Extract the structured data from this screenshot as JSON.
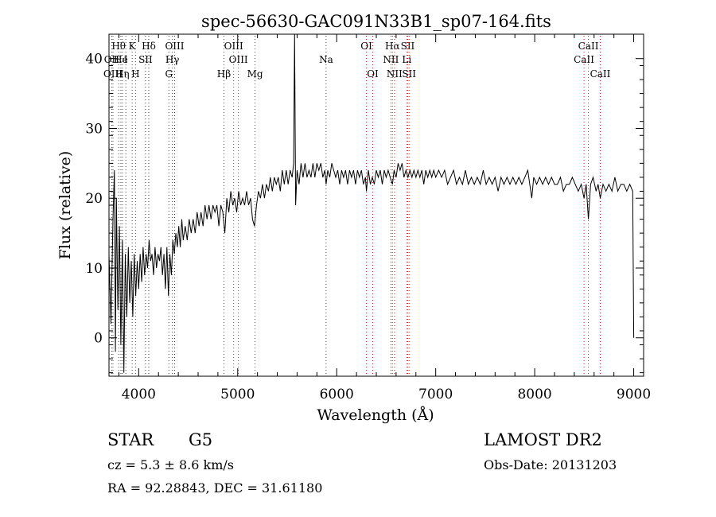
{
  "chart_data": {
    "type": "line",
    "title": "spec-56630-GAC091N33B1_sp07-164.fits",
    "xlabel": "Wavelength (Å)",
    "ylabel": "Flux (relative)",
    "xlim": [
      3700,
      9100
    ],
    "ylim": [
      -5.5,
      43.5
    ],
    "x_ticks": [
      4000,
      5000,
      6000,
      7000,
      8000,
      9000
    ],
    "y_ticks": [
      0,
      10,
      20,
      30,
      40
    ],
    "grid": false,
    "series": [
      {
        "points": [
          [
            3700,
            12
          ],
          [
            3720,
            2
          ],
          [
            3740,
            17
          ],
          [
            3755,
            24
          ],
          [
            3765,
            -2
          ],
          [
            3775,
            20
          ],
          [
            3790,
            4
          ],
          [
            3805,
            16
          ],
          [
            3820,
            -1
          ],
          [
            3835,
            14
          ],
          [
            3850,
            -5
          ],
          [
            3865,
            12
          ],
          [
            3880,
            3
          ],
          [
            3895,
            13
          ],
          [
            3910,
            5
          ],
          [
            3925,
            11
          ],
          [
            3940,
            3
          ],
          [
            3955,
            12
          ],
          [
            3970,
            6
          ],
          [
            3985,
            11
          ],
          [
            4000,
            7
          ],
          [
            4015,
            12
          ],
          [
            4030,
            8
          ],
          [
            4045,
            13
          ],
          [
            4060,
            9
          ],
          [
            4075,
            12
          ],
          [
            4090,
            10
          ],
          [
            4105,
            14
          ],
          [
            4120,
            11
          ],
          [
            4135,
            12
          ],
          [
            4150,
            9
          ],
          [
            4165,
            13
          ],
          [
            4180,
            10
          ],
          [
            4195,
            12
          ],
          [
            4210,
            11
          ],
          [
            4225,
            13
          ],
          [
            4240,
            9
          ],
          [
            4255,
            12
          ],
          [
            4270,
            7
          ],
          [
            4285,
            13
          ],
          [
            4300,
            6
          ],
          [
            4315,
            12
          ],
          [
            4330,
            9
          ],
          [
            4345,
            14
          ],
          [
            4360,
            12
          ],
          [
            4375,
            15
          ],
          [
            4390,
            13
          ],
          [
            4405,
            16
          ],
          [
            4420,
            13
          ],
          [
            4435,
            17
          ],
          [
            4450,
            14
          ],
          [
            4470,
            16
          ],
          [
            4490,
            14
          ],
          [
            4510,
            17
          ],
          [
            4530,
            15
          ],
          [
            4550,
            17
          ],
          [
            4570,
            15
          ],
          [
            4590,
            18
          ],
          [
            4610,
            16
          ],
          [
            4630,
            18
          ],
          [
            4650,
            16
          ],
          [
            4670,
            19
          ],
          [
            4690,
            17
          ],
          [
            4710,
            19
          ],
          [
            4730,
            17
          ],
          [
            4750,
            19
          ],
          [
            4770,
            18
          ],
          [
            4790,
            19
          ],
          [
            4810,
            16
          ],
          [
            4830,
            19
          ],
          [
            4850,
            18
          ],
          [
            4870,
            15
          ],
          [
            4890,
            20
          ],
          [
            4910,
            18
          ],
          [
            4930,
            21
          ],
          [
            4950,
            19
          ],
          [
            4970,
            20
          ],
          [
            4990,
            18
          ],
          [
            5010,
            21
          ],
          [
            5030,
            19
          ],
          [
            5050,
            20
          ],
          [
            5070,
            19
          ],
          [
            5090,
            21
          ],
          [
            5110,
            19
          ],
          [
            5130,
            20
          ],
          [
            5150,
            17
          ],
          [
            5170,
            16
          ],
          [
            5190,
            19
          ],
          [
            5210,
            21
          ],
          [
            5230,
            20
          ],
          [
            5250,
            22
          ],
          [
            5270,
            20
          ],
          [
            5290,
            22
          ],
          [
            5310,
            21
          ],
          [
            5330,
            23
          ],
          [
            5350,
            21
          ],
          [
            5370,
            23
          ],
          [
            5390,
            22
          ],
          [
            5410,
            23
          ],
          [
            5430,
            21
          ],
          [
            5450,
            24
          ],
          [
            5470,
            22
          ],
          [
            5490,
            24
          ],
          [
            5510,
            22
          ],
          [
            5530,
            24
          ],
          [
            5550,
            23
          ],
          [
            5565,
            25
          ],
          [
            5575,
            43.5
          ],
          [
            5585,
            19
          ],
          [
            5600,
            24
          ],
          [
            5620,
            22
          ],
          [
            5640,
            25
          ],
          [
            5660,
            23
          ],
          [
            5680,
            25
          ],
          [
            5700,
            23
          ],
          [
            5720,
            24
          ],
          [
            5740,
            23
          ],
          [
            5760,
            25
          ],
          [
            5780,
            23
          ],
          [
            5800,
            25
          ],
          [
            5820,
            24
          ],
          [
            5840,
            25
          ],
          [
            5860,
            23
          ],
          [
            5880,
            24
          ],
          [
            5893,
            22
          ],
          [
            5910,
            24
          ],
          [
            5930,
            23
          ],
          [
            5950,
            25
          ],
          [
            5970,
            24
          ],
          [
            5990,
            23
          ],
          [
            6010,
            24
          ],
          [
            6030,
            22
          ],
          [
            6050,
            24
          ],
          [
            6070,
            23
          ],
          [
            6090,
            24
          ],
          [
            6110,
            22
          ],
          [
            6130,
            24
          ],
          [
            6150,
            23
          ],
          [
            6170,
            24
          ],
          [
            6190,
            22
          ],
          [
            6210,
            24
          ],
          [
            6230,
            23
          ],
          [
            6250,
            24
          ],
          [
            6270,
            22
          ],
          [
            6290,
            23
          ],
          [
            6300,
            21
          ],
          [
            6320,
            24
          ],
          [
            6340,
            22
          ],
          [
            6360,
            23
          ],
          [
            6380,
            22
          ],
          [
            6400,
            24
          ],
          [
            6420,
            23
          ],
          [
            6440,
            24
          ],
          [
            6460,
            22
          ],
          [
            6480,
            24
          ],
          [
            6500,
            23
          ],
          [
            6520,
            24
          ],
          [
            6540,
            23
          ],
          [
            6563,
            22
          ],
          [
            6580,
            24
          ],
          [
            6600,
            23
          ],
          [
            6620,
            25
          ],
          [
            6640,
            24
          ],
          [
            6660,
            25
          ],
          [
            6680,
            23
          ],
          [
            6700,
            24
          ],
          [
            6720,
            23
          ],
          [
            6740,
            24
          ],
          [
            6760,
            23
          ],
          [
            6780,
            24
          ],
          [
            6800,
            23
          ],
          [
            6820,
            24
          ],
          [
            6840,
            23
          ],
          [
            6860,
            24
          ],
          [
            6880,
            22
          ],
          [
            6900,
            24
          ],
          [
            6920,
            23
          ],
          [
            6940,
            24
          ],
          [
            6960,
            23
          ],
          [
            6980,
            24
          ],
          [
            7000,
            23
          ],
          [
            7030,
            24
          ],
          [
            7060,
            23
          ],
          [
            7090,
            24
          ],
          [
            7120,
            22
          ],
          [
            7150,
            23
          ],
          [
            7180,
            24
          ],
          [
            7210,
            22
          ],
          [
            7240,
            23
          ],
          [
            7270,
            22
          ],
          [
            7300,
            24
          ],
          [
            7330,
            22
          ],
          [
            7360,
            23
          ],
          [
            7390,
            22
          ],
          [
            7420,
            23
          ],
          [
            7450,
            22
          ],
          [
            7480,
            24
          ],
          [
            7510,
            22
          ],
          [
            7540,
            23
          ],
          [
            7570,
            22
          ],
          [
            7600,
            23
          ],
          [
            7630,
            21
          ],
          [
            7660,
            23
          ],
          [
            7690,
            22
          ],
          [
            7720,
            23
          ],
          [
            7750,
            22
          ],
          [
            7780,
            23
          ],
          [
            7810,
            22
          ],
          [
            7840,
            23
          ],
          [
            7870,
            22
          ],
          [
            7900,
            23
          ],
          [
            7930,
            24
          ],
          [
            7950,
            22
          ],
          [
            7970,
            20
          ],
          [
            7990,
            23
          ],
          [
            8020,
            22
          ],
          [
            8050,
            23
          ],
          [
            8080,
            22
          ],
          [
            8110,
            23
          ],
          [
            8140,
            22
          ],
          [
            8170,
            23
          ],
          [
            8200,
            22
          ],
          [
            8230,
            22
          ],
          [
            8260,
            23
          ],
          [
            8290,
            21
          ],
          [
            8320,
            22
          ],
          [
            8350,
            22
          ],
          [
            8380,
            23
          ],
          [
            8410,
            22
          ],
          [
            8440,
            21
          ],
          [
            8470,
            22
          ],
          [
            8498,
            20
          ],
          [
            8520,
            22
          ],
          [
            8542,
            17
          ],
          [
            8565,
            22
          ],
          [
            8590,
            23
          ],
          [
            8620,
            21
          ],
          [
            8640,
            22
          ],
          [
            8662,
            20
          ],
          [
            8690,
            22
          ],
          [
            8720,
            21
          ],
          [
            8750,
            22
          ],
          [
            8780,
            21
          ],
          [
            8810,
            23
          ],
          [
            8840,
            21
          ],
          [
            8870,
            22
          ],
          [
            8900,
            22
          ],
          [
            8930,
            21
          ],
          [
            8960,
            22
          ],
          [
            8990,
            21
          ],
          [
            9000,
            0
          ]
        ]
      }
    ],
    "line_markers": [
      {
        "label": "Hθ",
        "x": 3798,
        "row": 1
      },
      {
        "label": "K",
        "x": 3934,
        "row": 1
      },
      {
        "label": "Hδ",
        "x": 4102,
        "row": 1
      },
      {
        "label": "OIII",
        "x": 4363,
        "row": 1
      },
      {
        "label": "OIII",
        "x": 4959,
        "row": 1
      },
      {
        "label": "OI",
        "x": 6300,
        "row": 1
      },
      {
        "label": "Hα",
        "x": 6563,
        "row": 1
      },
      {
        "label": "SII",
        "x": 6717,
        "row": 1
      },
      {
        "label": "CaII",
        "x": 8542,
        "row": 1
      },
      {
        "label": "OII",
        "x": 3727,
        "row": 2
      },
      {
        "label": "He",
        "x": 3820,
        "row": 2
      },
      {
        "label": "I",
        "x": 3870,
        "row": 2
      },
      {
        "label": "SII",
        "x": 4069,
        "row": 2
      },
      {
        "label": "Hγ",
        "x": 4340,
        "row": 2
      },
      {
        "label": "OIII",
        "x": 5007,
        "row": 2
      },
      {
        "label": "Na",
        "x": 5893,
        "row": 2
      },
      {
        "label": "NII",
        "x": 6548,
        "row": 2
      },
      {
        "label": "Li",
        "x": 6708,
        "row": 2
      },
      {
        "label": "CaII",
        "x": 8498,
        "row": 2
      },
      {
        "label": "OIII",
        "x": 3740,
        "row": 3
      },
      {
        "label": "Hη",
        "x": 3835,
        "row": 3
      },
      {
        "label": "H",
        "x": 3968,
        "row": 3
      },
      {
        "label": "G",
        "x": 4305,
        "row": 3
      },
      {
        "label": "Hβ",
        "x": 4861,
        "row": 3
      },
      {
        "label": "Mg",
        "x": 5175,
        "row": 3
      },
      {
        "label": "OI",
        "x": 6364,
        "row": 3
      },
      {
        "label": "NII",
        "x": 6584,
        "row": 3
      },
      {
        "label": "SII",
        "x": 6731,
        "row": 3
      },
      {
        "label": "CaII",
        "x": 8662,
        "row": 3
      }
    ],
    "marker_colors": {
      "red": "#cc2222",
      "black": "#444444"
    }
  },
  "info": {
    "object_type": "STAR",
    "subclass": "G5",
    "survey": "LAMOST DR2",
    "cz": "cz = 5.3 ± 8.6 km/s",
    "obs_date": "Obs-Date: 20131203",
    "coords": "RA =  92.28843, DEC =  31.61180"
  }
}
